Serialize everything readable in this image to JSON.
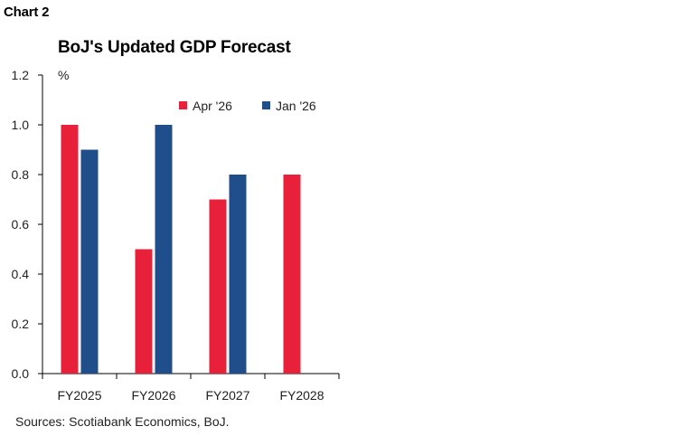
{
  "header": {
    "chart_label": "Chart 2",
    "source": "Sources: Scotiabank Economics, BoJ."
  },
  "colors": {
    "apr": "#e8203a",
    "jan": "#1f4e8a",
    "axis": "#000000"
  },
  "chart_data": {
    "type": "bar",
    "title": "BoJ's Updated GDP Forecast",
    "ylabel": "%",
    "xlabel": "",
    "categories": [
      "FY2025",
      "FY2026",
      "FY2027",
      "FY2028"
    ],
    "series": [
      {
        "name": "Apr '26",
        "values": [
          1.0,
          0.5,
          0.7,
          0.8
        ],
        "color": "#e8203a"
      },
      {
        "name": "Jan '26",
        "values": [
          0.9,
          1.0,
          0.8,
          null
        ],
        "color": "#1f4e8a"
      }
    ],
    "ylim": [
      0,
      1.2
    ],
    "yticks": [
      "0.0",
      "0.2",
      "0.4",
      "0.6",
      "0.8",
      "1.0",
      "1.2"
    ],
    "grid": false,
    "legend": "top-right"
  }
}
